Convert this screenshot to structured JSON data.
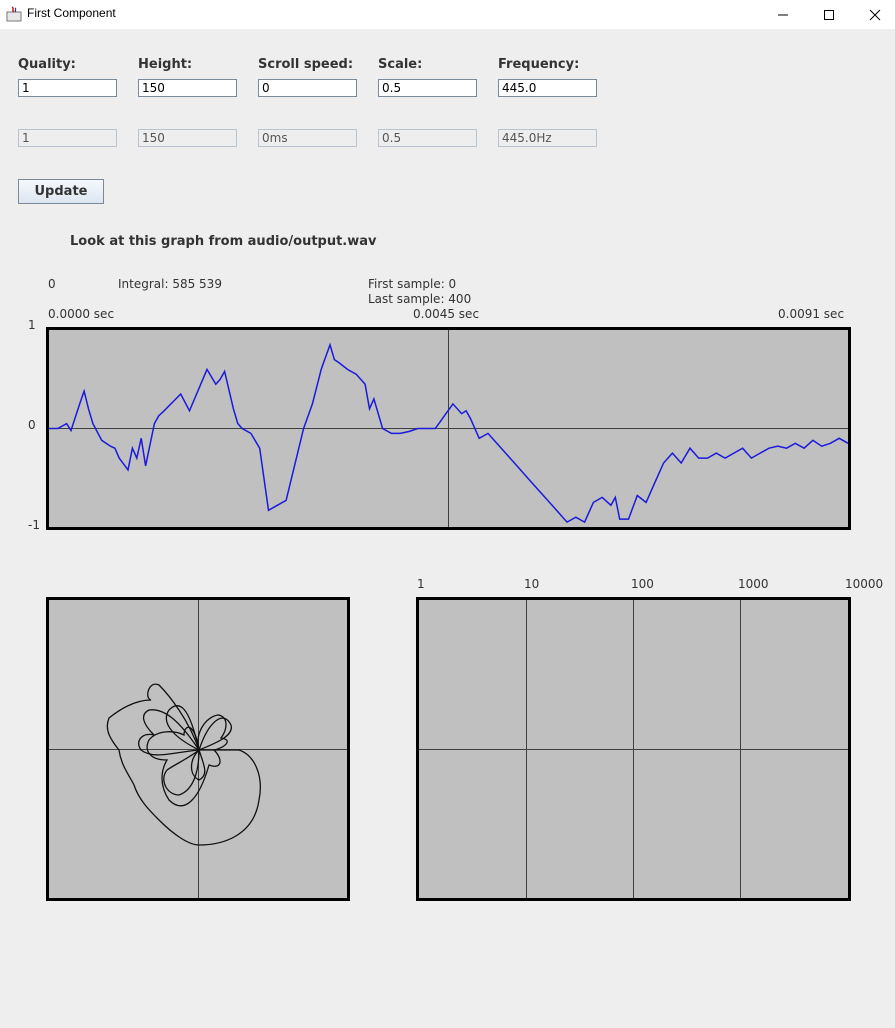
{
  "window": {
    "title": "First Component"
  },
  "controls": [
    {
      "label": "Quality:",
      "value": "1",
      "readout": "1"
    },
    {
      "label": "Height:",
      "value": "150",
      "readout": "150"
    },
    {
      "label": "Scroll speed:",
      "value": "0",
      "readout": "0ms"
    },
    {
      "label": "Scale:",
      "value": "0.5",
      "readout": "0.5"
    },
    {
      "label": "Frequency:",
      "value": "445.0",
      "readout": "445.0Hz"
    }
  ],
  "update_button": "Update",
  "heading": "Look at this graph from audio/output.wav",
  "waveform": {
    "index_label": "0",
    "integral": "Integral: 585 539",
    "first_sample": "First sample: 0",
    "last_sample": "Last sample: 400",
    "time_start": "0.0000 sec",
    "time_mid": "0.0045 sec",
    "time_end": "0.0091 sec",
    "y_max": "1",
    "y_zero": "0",
    "y_min": "-1",
    "line_color": "#1a1adc"
  },
  "spectrum": {
    "x_ticks": [
      "1",
      "10",
      "100",
      "1000",
      "10000"
    ]
  },
  "chart_data": {
    "type": "line",
    "title": "",
    "xlabel": "sec",
    "ylabel": "",
    "xlim": [
      0,
      0.0091
    ],
    "ylim": [
      -1,
      1
    ],
    "series": [
      {
        "x": [
          0,
          0.0001,
          0.0002,
          0.00025,
          0.00035,
          0.0004,
          0.00045,
          0.0005,
          0.0006,
          0.0007,
          0.00075,
          0.0008,
          0.0009,
          0.00095,
          0.001,
          0.00105,
          0.0011,
          0.0012,
          0.00125,
          0.0013,
          0.0015,
          0.0016,
          0.0018,
          0.0019,
          0.00195,
          0.002,
          0.0021,
          0.00215,
          0.0022,
          0.0023,
          0.0024,
          0.0025,
          0.0026,
          0.0027,
          0.0029,
          0.003,
          0.0031,
          0.0032,
          0.0032,
          0.00325,
          0.0033,
          0.0034,
          0.0035,
          0.0036,
          0.00365,
          0.0037,
          0.0038,
          0.0039,
          0.004,
          0.0041,
          0.0042,
          0.0044,
          0.0046,
          0.0047,
          0.00475,
          0.0048,
          0.0049,
          0.005,
          0.0052,
          0.0055,
          0.0058,
          0.0059,
          0.006,
          0.0061,
          0.0062,
          0.0063,
          0.0064,
          0.00645,
          0.0065,
          0.0066,
          0.0067,
          0.0068,
          0.0069,
          0.007,
          0.0071,
          0.0072,
          0.0073,
          0.0074,
          0.0075,
          0.0076,
          0.0077,
          0.0078,
          0.0079,
          0.008,
          0.0081,
          0.0082,
          0.0083,
          0.0084,
          0.0085,
          0.0086,
          0.0087,
          0.0088,
          0.0089,
          0.009,
          0.0091
        ],
        "y": [
          0,
          0,
          0.05,
          -0.02,
          0.25,
          0.38,
          0.2,
          0.05,
          -0.12,
          -0.18,
          -0.2,
          -0.3,
          -0.42,
          -0.2,
          -0.3,
          -0.1,
          -0.38,
          0.05,
          0.13,
          0.17,
          0.35,
          0.18,
          0.6,
          0.45,
          0.5,
          0.58,
          0.2,
          0.05,
          0.0,
          -0.05,
          -0.2,
          -0.83,
          -0.78,
          -0.73,
          0.0,
          0.25,
          0.6,
          0.85,
          0.85,
          0.7,
          0.67,
          0.6,
          0.55,
          0.45,
          0.2,
          0.3,
          0.0,
          -0.05,
          -0.05,
          -0.03,
          0.0,
          0.0,
          0.25,
          0.15,
          0.18,
          0.1,
          -0.1,
          -0.05,
          -0.25,
          -0.55,
          -0.85,
          -0.95,
          -0.9,
          -0.95,
          -0.75,
          -0.7,
          -0.78,
          -0.7,
          -0.92,
          -0.92,
          -0.68,
          -0.75,
          -0.55,
          -0.35,
          -0.25,
          -0.35,
          -0.2,
          -0.3,
          -0.3,
          -0.25,
          -0.3,
          -0.25,
          -0.2,
          -0.3,
          -0.25,
          -0.2,
          -0.18,
          -0.2,
          -0.15,
          -0.2,
          -0.12,
          -0.18,
          -0.15,
          -0.1,
          -0.15
        ]
      }
    ]
  }
}
